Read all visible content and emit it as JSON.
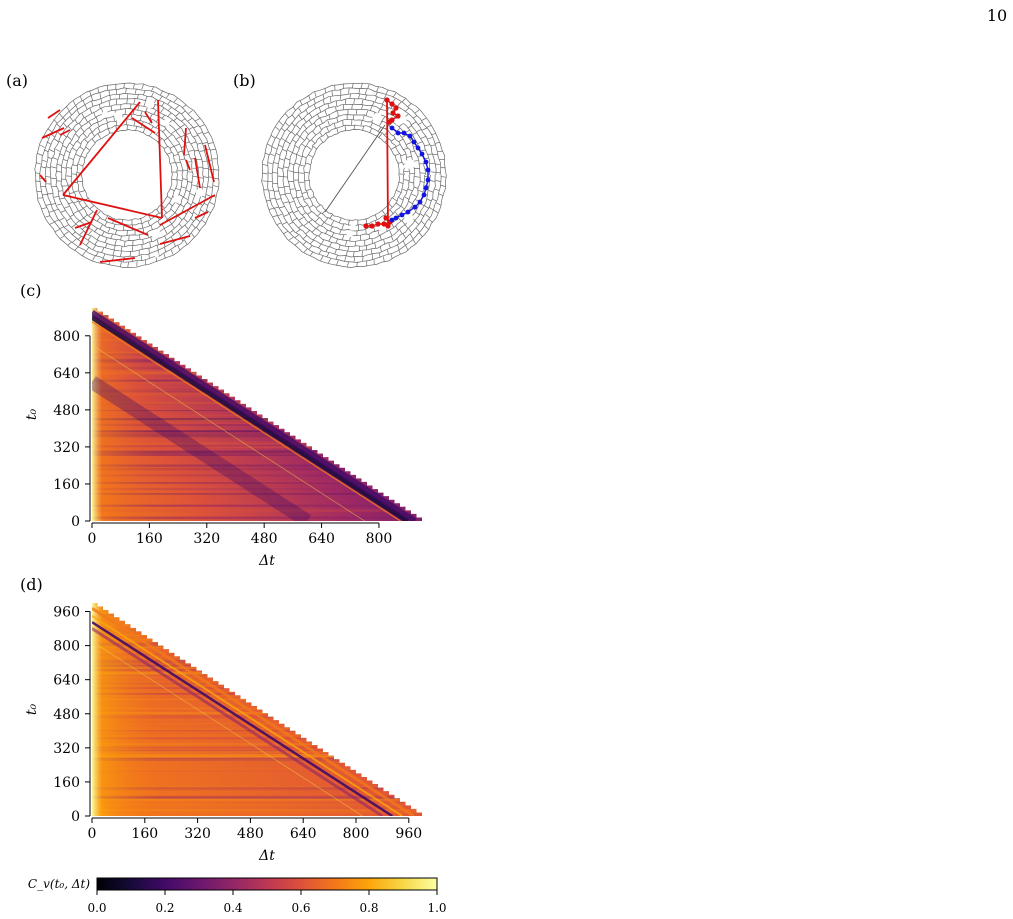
{
  "page": {
    "number": "10"
  },
  "panels": {
    "a": {
      "label": "(a)"
    },
    "b": {
      "label": "(b)"
    },
    "c": {
      "label": "(c)"
    },
    "d": {
      "label": "(d)"
    }
  },
  "colors": {
    "segment": "#e01010",
    "path_blue": "#1414e0",
    "grid": "#6a6a6a"
  },
  "chart_data": [
    {
      "type": "heatmap",
      "panel": "(c)",
      "xlabel": "Δt",
      "ylabel": "t₀",
      "xticks": [
        "0",
        "160",
        "320",
        "480",
        "640",
        "800"
      ],
      "yticks": [
        "0",
        "160",
        "320",
        "480",
        "640",
        "800"
      ],
      "xlim": [
        0,
        920
      ],
      "ylim": [
        0,
        920
      ],
      "domain": "triangle t0 + Δt ≤ 920",
      "colormap": "inferno"
    },
    {
      "type": "heatmap",
      "panel": "(d)",
      "xlabel": "Δt",
      "ylabel": "t₀",
      "xticks": [
        "0",
        "160",
        "320",
        "480",
        "640",
        "800",
        "960"
      ],
      "yticks": [
        "0",
        "160",
        "320",
        "480",
        "640",
        "800",
        "960"
      ],
      "xlim": [
        0,
        1000
      ],
      "ylim": [
        0,
        1000
      ],
      "domain": "triangle t0 + Δt ≤ 1000",
      "colormap": "inferno"
    }
  ],
  "colorbar": {
    "label": "C_v(t₀, Δt)",
    "ticks": [
      "0.0",
      "0.2",
      "0.4",
      "0.6",
      "0.8",
      "1.0"
    ],
    "tick_values": [
      0.0,
      0.2,
      0.4,
      0.6,
      0.8,
      1.0
    ],
    "range": [
      0.0,
      1.0
    ]
  }
}
